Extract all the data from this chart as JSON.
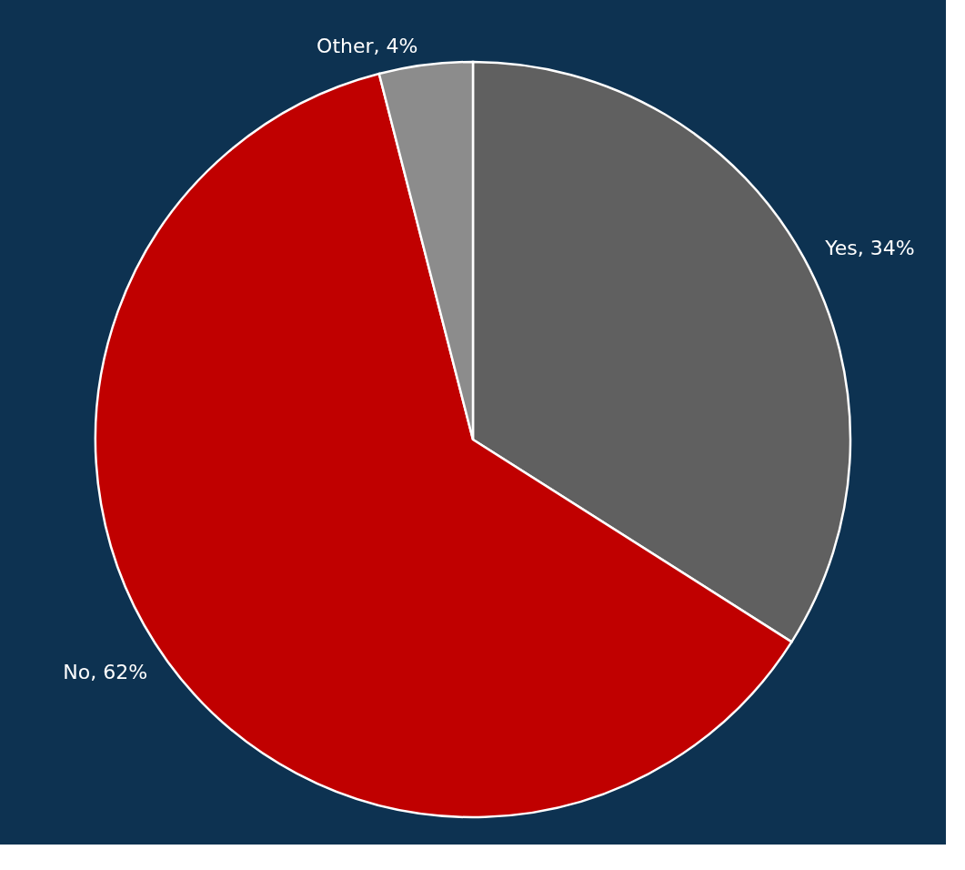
{
  "chart_data": {
    "type": "pie",
    "categories": [
      "Yes",
      "No",
      "Other"
    ],
    "values": [
      34,
      62,
      4
    ],
    "colors": [
      "#606060",
      "#c00000",
      "#8c8c8c"
    ],
    "value_labels": [
      "34%",
      "62%",
      "4%"
    ],
    "legend": false
  }
}
